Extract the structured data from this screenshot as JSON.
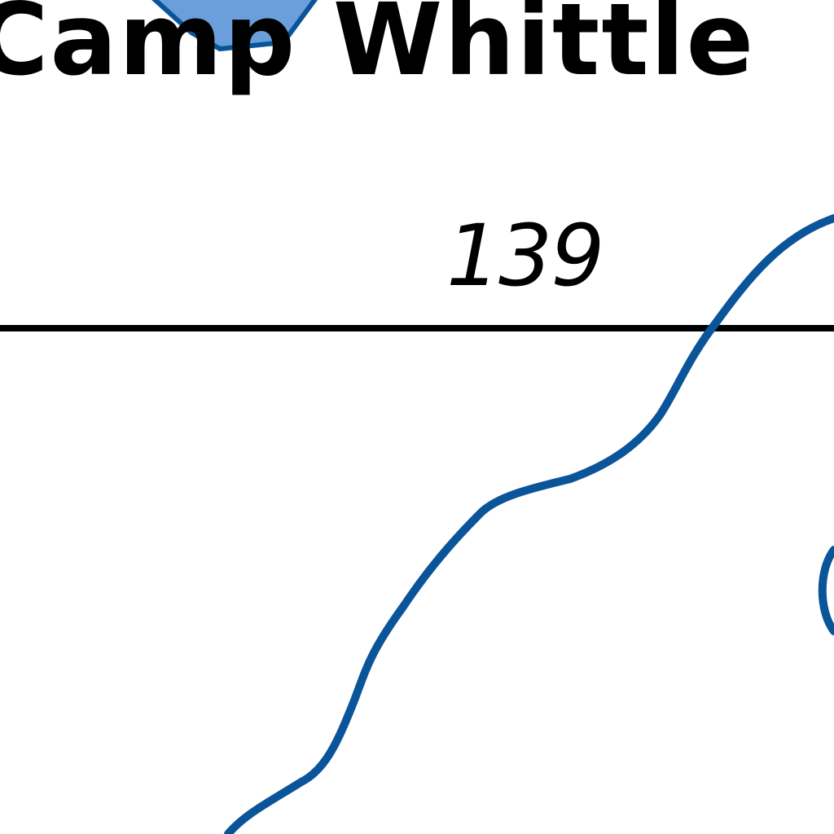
{
  "map": {
    "place_label": "Camp Whittle",
    "road_label": "139",
    "icons": {
      "place_marker": "blue-hexagon-symbol"
    },
    "colors": {
      "background": "#ffffff",
      "stream": "#0a5499",
      "marker_fill": "#6a9fdb",
      "marker_stroke": "#0a5499",
      "road_line": "#000000",
      "text": "#000000"
    }
  }
}
